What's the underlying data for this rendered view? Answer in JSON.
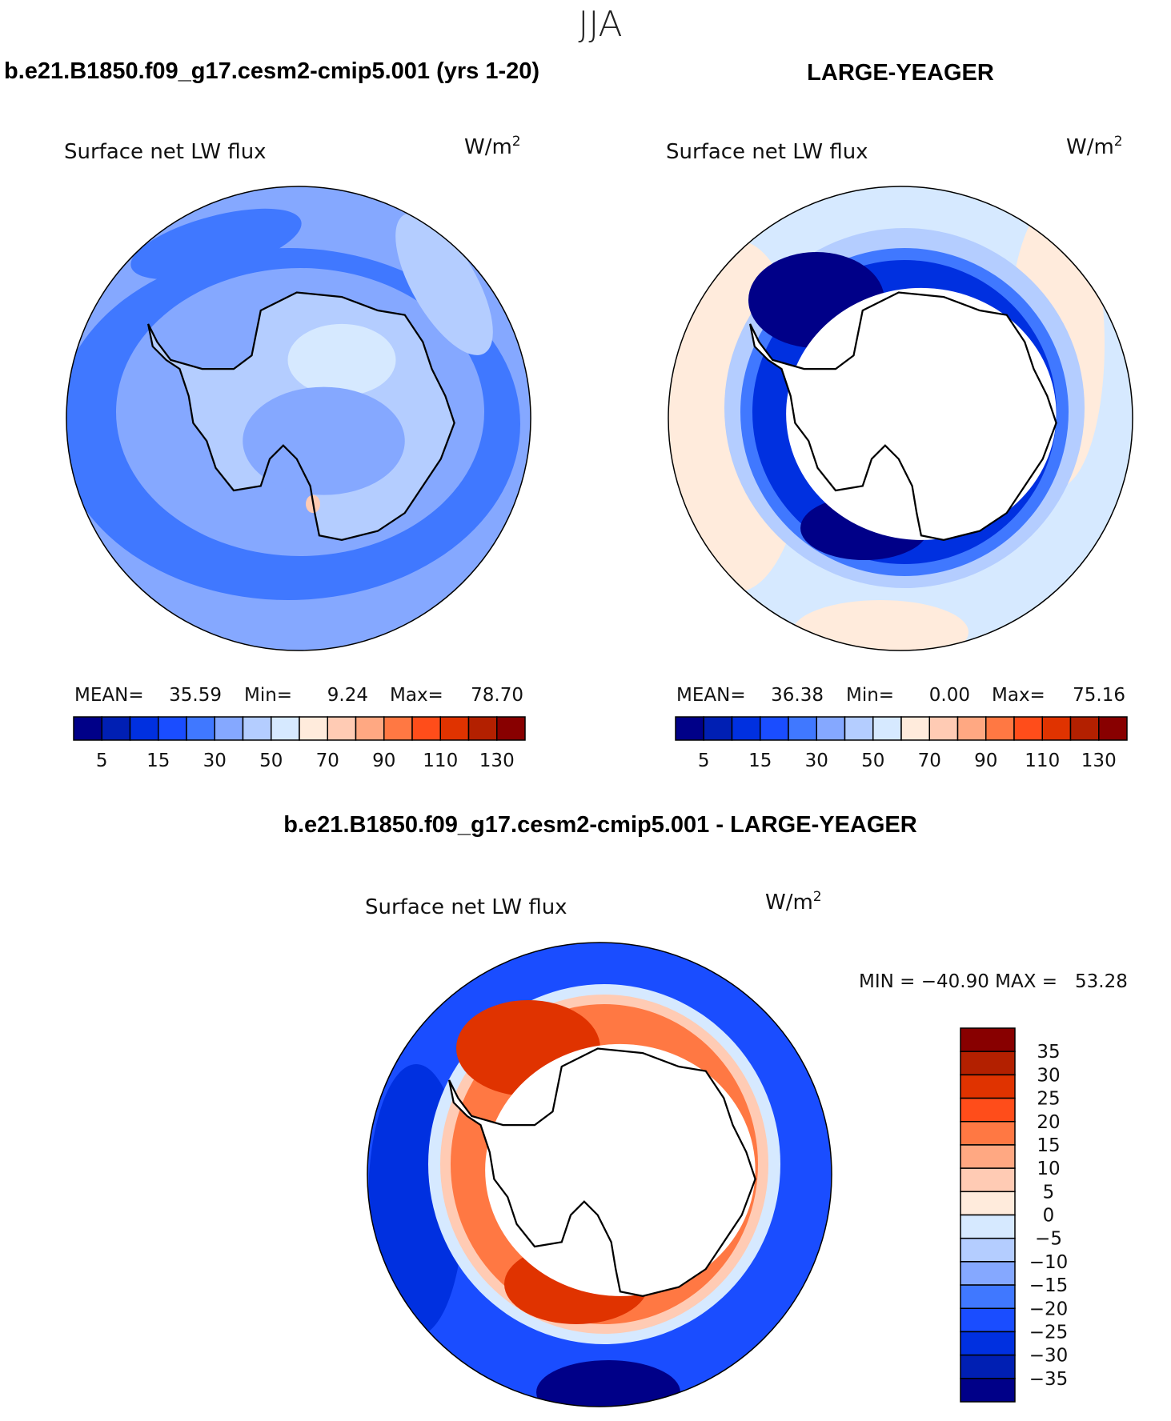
{
  "title": "JJA",
  "palette": [
    "#000088",
    "#001fb3",
    "#0030e0",
    "#1a4dff",
    "#4078ff",
    "#85a8ff",
    "#b4cdff",
    "#d6e9ff",
    "#ffebdc",
    "#ffcbb4",
    "#ffa882",
    "#ff7843",
    "#ff4d1a",
    "#e03300",
    "#b32000",
    "#880000"
  ],
  "chart_data": [
    {
      "type": "heatmap",
      "panel_title": "b.e21.B1850.f09_g17.cesm2-cmip5.001 (yrs 1-20)",
      "subtitle": "Surface net LW flux",
      "units": "W/m",
      "units_sup": "2",
      "projection": "south polar stereographic",
      "stats": {
        "mean_label": "MEAN=",
        "mean": "35.59",
        "min_label": "Min=",
        "min": "9.24",
        "max_label": "Max=",
        "max": "78.70"
      },
      "levels": [
        5,
        10,
        15,
        20,
        30,
        40,
        50,
        60,
        70,
        80,
        90,
        100,
        110,
        120,
        130
      ],
      "tick_labels": [
        "5",
        "15",
        "30",
        "50",
        "70",
        "90",
        "110",
        "130"
      ]
    },
    {
      "type": "heatmap",
      "panel_title": "LARGE-YEAGER",
      "subtitle": "Surface net LW flux",
      "units": "W/m",
      "units_sup": "2",
      "projection": "south polar stereographic",
      "stats": {
        "mean_label": "MEAN=",
        "mean": "36.38",
        "min_label": "Min=",
        "min": "0.00",
        "max_label": "Max=",
        "max": "75.16"
      },
      "levels": [
        5,
        10,
        15,
        20,
        30,
        40,
        50,
        60,
        70,
        80,
        90,
        100,
        110,
        120,
        130
      ],
      "tick_labels": [
        "5",
        "15",
        "30",
        "50",
        "70",
        "90",
        "110",
        "130"
      ]
    },
    {
      "type": "heatmap",
      "panel_title": "b.e21.B1850.f09_g17.cesm2-cmip5.001 - LARGE-YEAGER",
      "subtitle": "Surface net LW flux",
      "units": "W/m",
      "units_sup": "2",
      "projection": "south polar stereographic",
      "stats": {
        "text": "MIN = −40.90 MAX =   53.28"
      },
      "levels": [
        -35,
        -30,
        -25,
        -20,
        -15,
        -10,
        -5,
        0,
        5,
        10,
        15,
        20,
        25,
        30,
        35
      ],
      "tick_labels": [
        "35",
        "30",
        "25",
        "20",
        "15",
        "10",
        "5",
        "0",
        "−5",
        "−10",
        "−15",
        "−20",
        "−25",
        "−30",
        "−35"
      ]
    }
  ]
}
